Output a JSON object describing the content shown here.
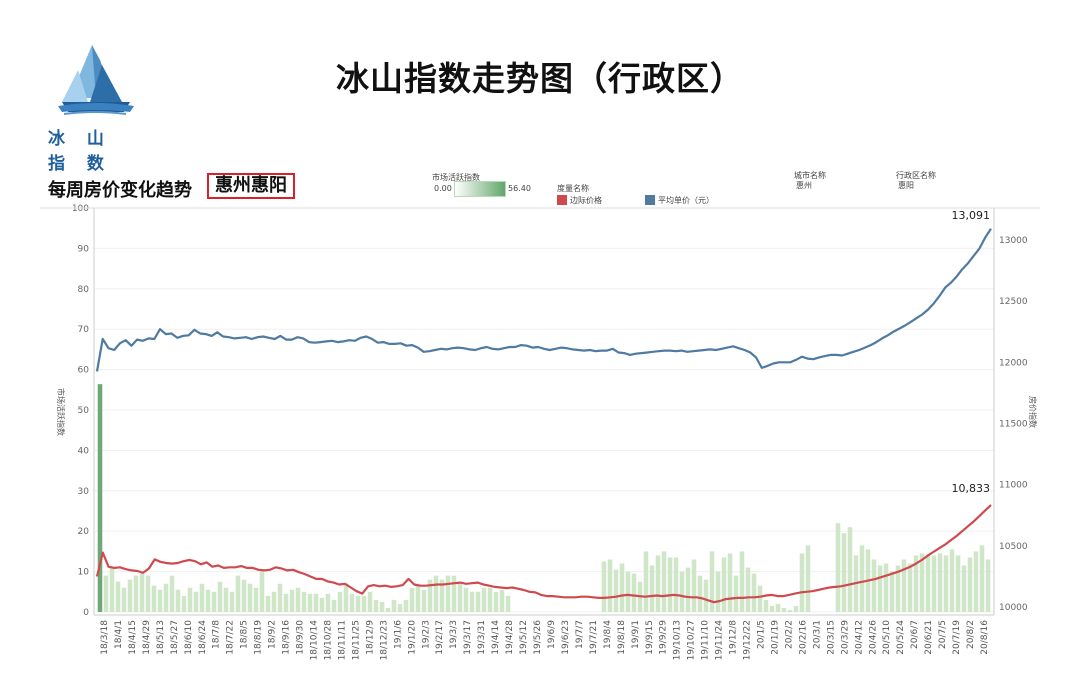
{
  "header": {
    "logo_text": "冰 山 指 数",
    "page_title": "冰山指数走势图（行政区）"
  },
  "chart_header": {
    "title": "每周房价变化趋势",
    "region": "惠州惠阳",
    "activity_legend": {
      "label": "市场活跃指数",
      "min": "0.00",
      "max": "56.40"
    },
    "measure_legend": {
      "label": "度量名称",
      "items": [
        "边际价格",
        "平均单价（元）"
      ]
    },
    "city_label": "城市名称",
    "city_value": "惠州",
    "district_label": "行政区名称",
    "district_value": "惠阳"
  },
  "colors": {
    "avg_price": "#4f7aa1",
    "marginal_price": "#cf4a4f",
    "bars_dark": "#6fa777",
    "bars_light": "#cfe6c9",
    "region_box": "#d6222a"
  },
  "chart_data": {
    "type": "line",
    "left_axis": {
      "title": "市场活跃指数",
      "range": [
        0,
        100
      ],
      "ticks": [
        0,
        10,
        20,
        30,
        40,
        50,
        60,
        70,
        80,
        90,
        100
      ]
    },
    "right_axis": {
      "title": "房价指数",
      "range": [
        9960,
        13260
      ],
      "ticks": [
        10000,
        10500,
        11000,
        11500,
        12000,
        12500,
        13000
      ]
    },
    "x_labels": [
      "18/3/18",
      "18/4/1",
      "18/4/15",
      "18/4/29",
      "18/5/13",
      "18/5/27",
      "18/6/10",
      "18/6/24",
      "18/7/8",
      "18/7/22",
      "18/8/5",
      "18/8/19",
      "18/9/2",
      "18/9/16",
      "18/9/30",
      "18/10/14",
      "18/10/28",
      "18/11/11",
      "18/11/25",
      "18/12/9",
      "18/12/23",
      "19/1/6",
      "19/1/20",
      "19/2/3",
      "19/2/17",
      "19/3/3",
      "19/3/17",
      "19/3/31",
      "19/4/14",
      "19/4/28",
      "19/5/12",
      "19/5/26",
      "19/6/9",
      "19/6/23",
      "19/7/7",
      "19/7/21",
      "19/8/4",
      "19/8/18",
      "19/9/1",
      "19/9/15",
      "19/9/29",
      "19/10/13",
      "19/10/27",
      "19/11/10",
      "19/11/24",
      "19/12/8",
      "19/12/22",
      "20/1/5",
      "20/1/19",
      "20/2/2",
      "20/2/16",
      "20/3/1",
      "20/3/15",
      "20/3/29",
      "20/4/12",
      "20/4/26",
      "20/5/10",
      "20/5/24",
      "20/6/7",
      "20/6/21",
      "20/7/5",
      "20/7/19",
      "20/8/2",
      "20/8/16"
    ],
    "end_labels": {
      "avg_price": "13,091",
      "marginal_price": "10,833"
    },
    "series": [
      {
        "name": "平均单价（元）",
        "axis": "right",
        "values": [
          11925,
          12190,
          12115,
          12100,
          12155,
          12180,
          12135,
          12185,
          12175,
          12195,
          12190,
          12270,
          12230,
          12235,
          12200,
          12215,
          12220,
          12265,
          12235,
          12230,
          12215,
          12245,
          12210,
          12205,
          12195,
          12200,
          12205,
          12190,
          12205,
          12210,
          12200,
          12190,
          12215,
          12185,
          12185,
          12205,
          12195,
          12165,
          12160,
          12165,
          12170,
          12175,
          12165,
          12170,
          12180,
          12175,
          12200,
          12210,
          12190,
          12160,
          12165,
          12150,
          12150,
          12155,
          12135,
          12140,
          12120,
          12085,
          12090,
          12100,
          12110,
          12105,
          12115,
          12120,
          12115,
          12105,
          12100,
          12115,
          12125,
          12110,
          12105,
          12115,
          12125,
          12125,
          12140,
          12135,
          12120,
          12125,
          12110,
          12100,
          12110,
          12120,
          12115,
          12105,
          12100,
          12095,
          12100,
          12090,
          12095,
          12095,
          12110,
          12080,
          12075,
          12060,
          12070,
          12075,
          12080,
          12085,
          12090,
          12095,
          12095,
          12090,
          12095,
          12085,
          12090,
          12095,
          12100,
          12105,
          12100,
          12110,
          12120,
          12130,
          12115,
          12100,
          12080,
          12040,
          11955,
          11970,
          11990,
          12000,
          12000,
          12000,
          12020,
          12045,
          12030,
          12025,
          12040,
          12050,
          12060,
          12060,
          12055,
          12070,
          12085,
          12100,
          12120,
          12140,
          12165,
          12195,
          12220,
          12250,
          12275,
          12300,
          12330,
          12360,
          12390,
          12430,
          12480,
          12540,
          12610,
          12650,
          12700,
          12760,
          12810,
          12870,
          12930,
          13020,
          13091
        ]
      },
      {
        "name": "边际价格",
        "axis": "right",
        "values": [
          10250,
          10445,
          10330,
          10320,
          10325,
          10310,
          10300,
          10295,
          10280,
          10315,
          10390,
          10370,
          10360,
          10355,
          10360,
          10375,
          10385,
          10375,
          10350,
          10365,
          10330,
          10340,
          10320,
          10325,
          10325,
          10335,
          10320,
          10320,
          10305,
          10300,
          10305,
          10325,
          10315,
          10300,
          10305,
          10285,
          10270,
          10250,
          10230,
          10230,
          10210,
          10200,
          10185,
          10190,
          10160,
          10130,
          10110,
          10170,
          10180,
          10170,
          10175,
          10165,
          10170,
          10180,
          10230,
          10185,
          10175,
          10175,
          10180,
          10185,
          10185,
          10190,
          10195,
          10200,
          10190,
          10195,
          10200,
          10185,
          10175,
          10165,
          10160,
          10155,
          10160,
          10150,
          10140,
          10125,
          10120,
          10100,
          10090,
          10090,
          10085,
          10080,
          10080,
          10080,
          10085,
          10085,
          10080,
          10075,
          10075,
          10080,
          10085,
          10095,
          10100,
          10095,
          10090,
          10085,
          10090,
          10095,
          10090,
          10095,
          10100,
          10095,
          10085,
          10080,
          10080,
          10070,
          10055,
          10040,
          10050,
          10065,
          10070,
          10075,
          10075,
          10080,
          10080,
          10085,
          10095,
          10100,
          10090,
          10090,
          10100,
          10110,
          10120,
          10125,
          10130,
          10140,
          10150,
          10160,
          10165,
          10170,
          10180,
          10190,
          10200,
          10210,
          10220,
          10230,
          10245,
          10260,
          10275,
          10290,
          10310,
          10330,
          10355,
          10385,
          10420,
          10450,
          10480,
          10510,
          10545,
          10580,
          10620,
          10660,
          10700,
          10745,
          10790,
          10833
        ]
      },
      {
        "name": "市场活跃指数",
        "axis": "left",
        "type": "bar",
        "values": [
          56.4,
          9,
          11,
          7.5,
          6,
          8,
          9,
          9.5,
          9,
          6.5,
          5.5,
          7,
          9,
          5.5,
          4,
          6,
          5,
          7,
          5.5,
          5,
          7.5,
          6,
          5,
          9,
          8,
          7,
          6,
          10,
          4,
          5,
          7,
          4.5,
          5.5,
          6,
          5,
          4.5,
          4.5,
          3.5,
          4.5,
          3,
          5,
          7,
          4.5,
          4,
          4,
          5,
          3,
          2.5,
          1,
          3,
          2,
          3,
          6,
          7,
          5.5,
          8,
          9,
          8,
          9,
          9,
          7,
          6,
          5,
          5,
          6,
          6,
          5,
          5.5,
          4,
          0,
          0,
          0,
          0,
          0,
          0,
          0,
          0,
          0,
          0,
          0,
          0,
          0,
          0,
          0,
          12.5,
          13,
          10.5,
          12,
          10,
          9.5,
          7.5,
          15,
          11.5,
          14,
          15,
          13.5,
          13.5,
          10,
          11,
          13,
          9,
          8,
          15,
          10,
          13.5,
          14.5,
          9,
          15,
          11,
          9.5,
          6.5,
          3,
          1.5,
          2,
          1,
          0.5,
          1.5,
          14.5,
          16.5,
          0,
          0,
          0,
          0,
          22,
          19.5,
          21,
          14,
          16.5,
          15.5,
          13,
          11.5,
          12,
          10,
          11.5,
          13,
          12,
          14,
          14.5,
          14,
          14,
          14.5,
          14,
          15.5,
          14,
          11.5,
          13.5,
          15,
          16.5,
          13
        ]
      }
    ]
  }
}
